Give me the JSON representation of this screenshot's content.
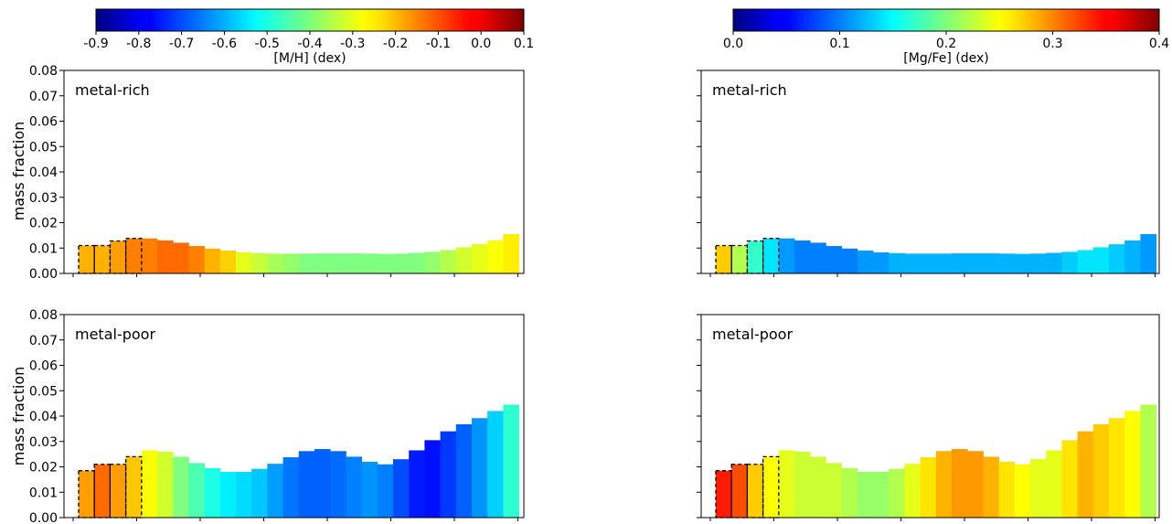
{
  "colorbars": [
    {
      "label": "[M/H] (dex)",
      "vmin": -0.9,
      "vmax": 0.1,
      "ticks": [
        "-0.9",
        "-0.8",
        "-0.7",
        "-0.6",
        "-0.5",
        "-0.4",
        "-0.3",
        "-0.2",
        "-0.1",
        "0.0",
        "0.1"
      ],
      "tick_values": [
        -0.9,
        -0.8,
        -0.7,
        -0.6,
        -0.5,
        -0.4,
        -0.3,
        -0.2,
        -0.1,
        0.0,
        0.1
      ]
    },
    {
      "label": "[Mg/Fe] (dex)",
      "vmin": 0.0,
      "vmax": 0.4,
      "ticks": [
        "0.0",
        "0.1",
        "0.2",
        "0.3",
        "0.4"
      ],
      "tick_values": [
        0.0,
        0.1,
        0.2,
        0.3,
        0.4
      ]
    }
  ],
  "colormap": "jet",
  "chart_data": [
    {
      "type": "bar",
      "title": "metal-rich",
      "ylabel": "mass fraction",
      "ylim": [
        0,
        0.08
      ],
      "yticks": [
        "0.00",
        "0.01",
        "0.02",
        "0.03",
        "0.04",
        "0.05",
        "0.06",
        "0.07",
        "0.08"
      ],
      "color_variable": "[M/H] (dex)",
      "values": [
        0.011,
        0.011,
        0.0128,
        0.0138,
        0.0138,
        0.013,
        0.0121,
        0.0108,
        0.0098,
        0.009,
        0.0083,
        0.008,
        0.0078,
        0.0078,
        0.0078,
        0.0079,
        0.0079,
        0.0079,
        0.0078,
        0.0077,
        0.0078,
        0.0081,
        0.0085,
        0.0092,
        0.0103,
        0.0115,
        0.013,
        0.0155
      ],
      "colors_value": [
        -0.2,
        -0.2,
        -0.18,
        -0.15,
        -0.15,
        -0.13,
        -0.13,
        -0.15,
        -0.2,
        -0.23,
        -0.3,
        -0.33,
        -0.36,
        -0.38,
        -0.4,
        -0.4,
        -0.4,
        -0.4,
        -0.4,
        -0.4,
        -0.4,
        -0.4,
        -0.38,
        -0.35,
        -0.32,
        -0.3,
        -0.28,
        -0.26
      ],
      "dashed_bars": [
        0,
        1,
        2,
        3
      ]
    },
    {
      "type": "bar",
      "title": "metal-rich",
      "ylabel": "",
      "ylim": [
        0,
        0.08
      ],
      "color_variable": "[Mg/Fe] (dex)",
      "values": [
        0.011,
        0.011,
        0.0128,
        0.0138,
        0.0138,
        0.013,
        0.0121,
        0.0108,
        0.0098,
        0.009,
        0.0083,
        0.008,
        0.0078,
        0.0078,
        0.0078,
        0.0079,
        0.0079,
        0.0079,
        0.0078,
        0.0077,
        0.0078,
        0.0081,
        0.0085,
        0.0092,
        0.0103,
        0.0115,
        0.013,
        0.0155
      ],
      "colors_value": [
        0.27,
        0.22,
        0.17,
        0.14,
        0.11,
        0.1,
        0.1,
        0.1,
        0.1,
        0.11,
        0.11,
        0.12,
        0.12,
        0.12,
        0.12,
        0.12,
        0.12,
        0.12,
        0.12,
        0.12,
        0.12,
        0.12,
        0.13,
        0.14,
        0.14,
        0.13,
        0.12,
        0.11
      ],
      "dashed_bars": [
        0,
        1,
        2,
        3
      ]
    },
    {
      "type": "bar",
      "title": "metal-poor",
      "ylabel": "mass fraction",
      "ylim": [
        0,
        0.08
      ],
      "yticks": [
        "0.00",
        "0.01",
        "0.02",
        "0.03",
        "0.04",
        "0.05",
        "0.06",
        "0.07",
        "0.08"
      ],
      "color_variable": "[M/H] (dex)",
      "values": [
        0.0185,
        0.021,
        0.021,
        0.024,
        0.0265,
        0.026,
        0.024,
        0.0215,
        0.0195,
        0.018,
        0.018,
        0.0192,
        0.0212,
        0.0238,
        0.0262,
        0.027,
        0.0262,
        0.024,
        0.022,
        0.021,
        0.023,
        0.0265,
        0.0305,
        0.034,
        0.0368,
        0.0392,
        0.042,
        0.0445
      ],
      "colors_value": [
        -0.18,
        -0.13,
        -0.18,
        -0.22,
        -0.28,
        -0.32,
        -0.4,
        -0.45,
        -0.5,
        -0.54,
        -0.56,
        -0.58,
        -0.62,
        -0.66,
        -0.68,
        -0.68,
        -0.67,
        -0.65,
        -0.63,
        -0.65,
        -0.7,
        -0.75,
        -0.76,
        -0.72,
        -0.68,
        -0.63,
        -0.57,
        -0.48
      ],
      "dashed_bars": [
        0,
        1,
        2,
        3
      ]
    },
    {
      "type": "bar",
      "title": "metal-poor",
      "ylabel": "",
      "ylim": [
        0,
        0.08
      ],
      "color_variable": "[Mg/Fe] (dex)",
      "values": [
        0.0185,
        0.021,
        0.021,
        0.024,
        0.0265,
        0.026,
        0.024,
        0.0215,
        0.0195,
        0.018,
        0.018,
        0.0192,
        0.0212,
        0.0238,
        0.0262,
        0.027,
        0.0262,
        0.024,
        0.022,
        0.021,
        0.023,
        0.0265,
        0.0305,
        0.034,
        0.0368,
        0.0392,
        0.042,
        0.0445
      ],
      "colors_value": [
        0.34,
        0.32,
        0.27,
        0.25,
        0.24,
        0.23,
        0.23,
        0.23,
        0.22,
        0.21,
        0.21,
        0.22,
        0.24,
        0.26,
        0.28,
        0.29,
        0.29,
        0.28,
        0.26,
        0.25,
        0.24,
        0.24,
        0.26,
        0.28,
        0.27,
        0.26,
        0.25,
        0.22
      ],
      "dashed_bars": [
        0,
        1,
        2,
        3
      ]
    }
  ]
}
